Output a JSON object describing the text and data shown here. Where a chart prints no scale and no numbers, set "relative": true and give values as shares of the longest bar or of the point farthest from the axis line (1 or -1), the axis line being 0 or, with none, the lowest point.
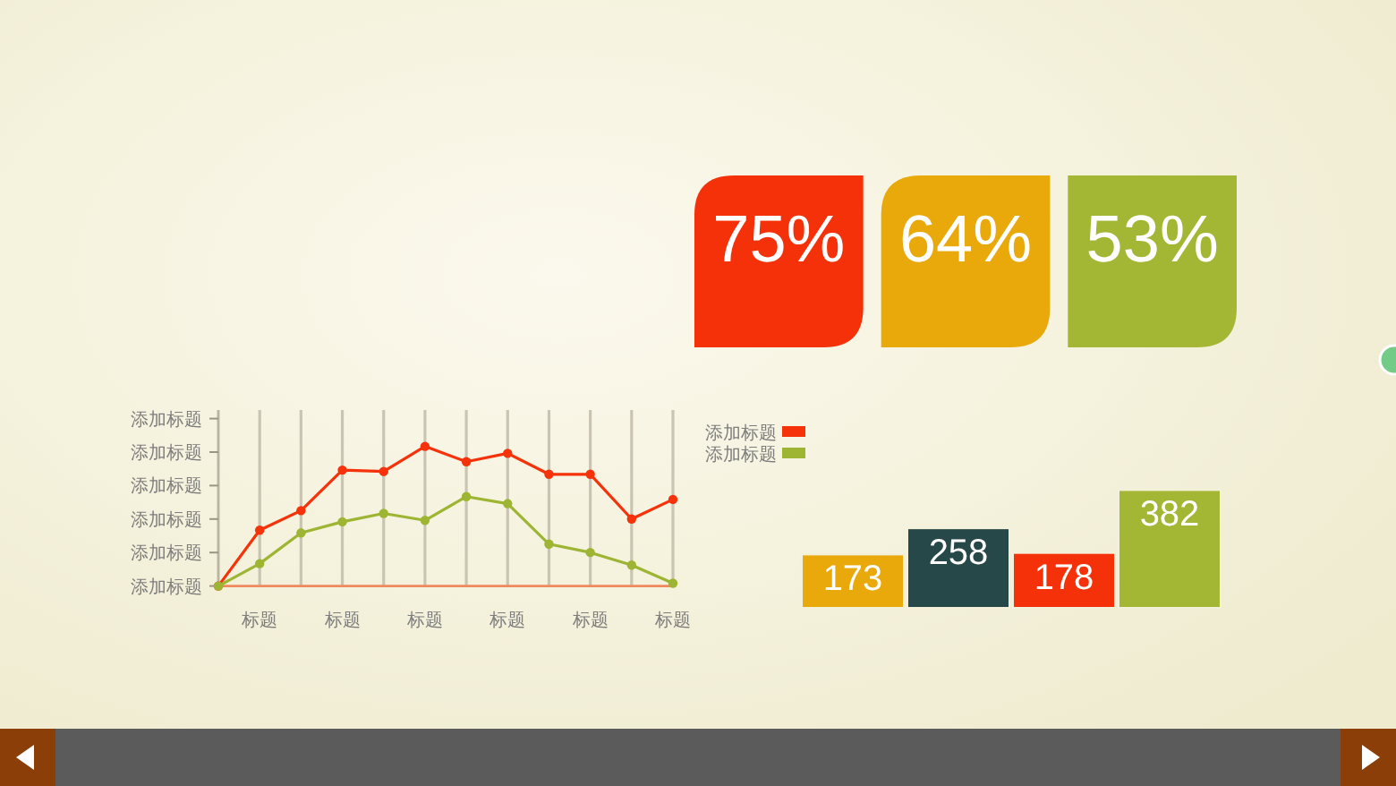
{
  "chart_data": [
    {
      "type": "other",
      "annotations": [
        "75%",
        "64%",
        "53%"
      ],
      "colors": [
        "#f5310a",
        "#e9a90b",
        "#a3b735"
      ]
    },
    {
      "type": "line",
      "relative": true,
      "categories": [
        null,
        "标题",
        null,
        "标题",
        null,
        "标题",
        null,
        "标题",
        null,
        "标题",
        null,
        "标题"
      ],
      "annotations": [
        "添加标题",
        "添加标题",
        "添加标题",
        "添加标题",
        "添加标题",
        "添加标题"
      ],
      "series": [
        {
          "name": "添加标题",
          "color": "#f5320a",
          "values": [
            0,
            0.4,
            0.54,
            0.83,
            0.82,
            1,
            0.89,
            0.95,
            0.8,
            0.8,
            0.48,
            0.62
          ]
        },
        {
          "name": "添加标题",
          "color": "#9db533",
          "values": [
            0,
            0.16,
            0.38,
            0.46,
            0.52,
            0.47,
            0.64,
            0.59,
            0.3,
            0.24,
            0.15,
            0.02
          ]
        }
      ],
      "grid": "x",
      "marker": "circle",
      "line_style": "solid",
      "legend": "right"
    },
    {
      "type": "bar",
      "categories": [
        null,
        null,
        null,
        null
      ],
      "values": [
        173,
        258,
        178,
        382
      ],
      "colors": [
        "#e9a90b",
        "#274848",
        "#f5310a",
        "#a3b735"
      ],
      "data_labels": true
    }
  ]
}
